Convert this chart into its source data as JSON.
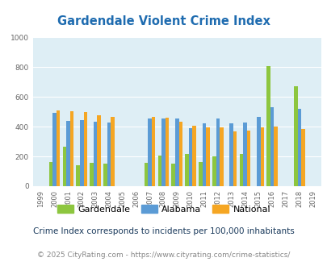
{
  "title": "Gardendale Violent Crime Index",
  "years": [
    1999,
    2000,
    2001,
    2002,
    2003,
    2004,
    2005,
    2006,
    2007,
    2008,
    2009,
    2010,
    2011,
    2012,
    2013,
    2014,
    2015,
    2016,
    2017,
    2018,
    2019
  ],
  "gardendale": [
    0,
    165,
    265,
    140,
    155,
    150,
    0,
    0,
    155,
    205,
    150,
    215,
    163,
    200,
    0,
    215,
    0,
    805,
    0,
    672,
    0
  ],
  "alabama": [
    0,
    495,
    437,
    445,
    432,
    428,
    0,
    0,
    452,
    453,
    452,
    388,
    420,
    453,
    420,
    428,
    468,
    533,
    0,
    522,
    0
  ],
  "national": [
    0,
    507,
    504,
    497,
    475,
    463,
    0,
    0,
    467,
    458,
    434,
    408,
    394,
    397,
    368,
    376,
    393,
    401,
    0,
    383,
    0
  ],
  "gardendale_color": "#8dc63f",
  "alabama_color": "#5b9bd5",
  "national_color": "#f5a623",
  "plot_bg_color": "#deeef5",
  "title_color": "#1f6cb0",
  "footnote1_color": "#1a3a5c",
  "footnote2_color": "#888888",
  "grid_color": "#c8dde8",
  "ylim": [
    0,
    1000
  ],
  "yticks": [
    0,
    200,
    400,
    600,
    800,
    1000
  ],
  "footnote1": "Crime Index corresponds to incidents per 100,000 inhabitants",
  "footnote2": "© 2025 CityRating.com - https://www.cityrating.com/crime-statistics/"
}
